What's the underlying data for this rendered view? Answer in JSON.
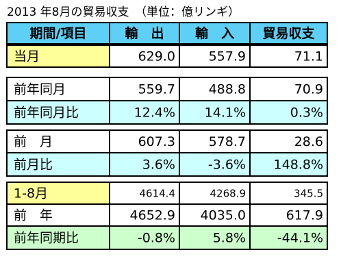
{
  "title": "2013 年8月の貿易収支　（単位：億リンギ）",
  "header": [
    "期間/項目",
    "輸　出",
    "輸　入",
    "貿易収支"
  ],
  "rows": [
    [
      "当月",
      "629.0",
      "557.9",
      "71.1"
    ],
    [
      "前年同月",
      "559.7",
      "488.8",
      "70.9"
    ],
    [
      "前年同月比",
      "12.4%",
      "14.1%",
      "0.3%"
    ],
    [
      "前　月",
      "607.3",
      "578.7",
      "28.6"
    ],
    [
      "前月比",
      "3.6%",
      "-3.6%",
      "148.8%"
    ],
    [
      "1-8月",
      "4614.4",
      "4268.9",
      "345.5"
    ],
    [
      "前　年",
      "4652.9",
      "4035.0",
      "617.9"
    ],
    [
      "前年同期比",
      "-0.8%",
      "5.8%",
      "-44.1%"
    ]
  ]
}
